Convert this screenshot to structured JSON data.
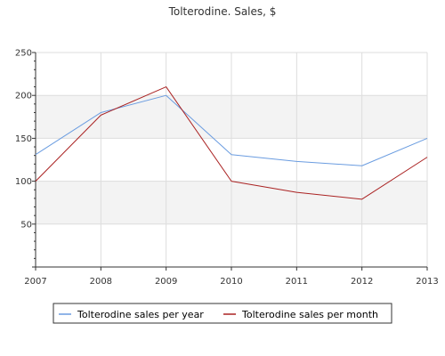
{
  "chart_data": {
    "type": "line",
    "title": "Tolterodine. Sales, $",
    "xlabel": "",
    "ylabel": "",
    "x": [
      "2007",
      "2008",
      "2009",
      "2010",
      "2011",
      "2012",
      "2013"
    ],
    "ylim": [
      0,
      250
    ],
    "yticks": [
      "50",
      "100",
      "150",
      "200",
      "250"
    ],
    "grid": true,
    "legend_position": "bottom",
    "series": [
      {
        "name": "Tolterodine sales per year",
        "color": "#6a9ce0",
        "values": [
          131,
          180,
          200,
          131,
          123,
          118,
          150
        ]
      },
      {
        "name": "Tolterodine sales per month",
        "color": "#aa2222",
        "values": [
          100,
          177,
          210,
          100,
          87,
          79,
          128
        ]
      }
    ]
  }
}
